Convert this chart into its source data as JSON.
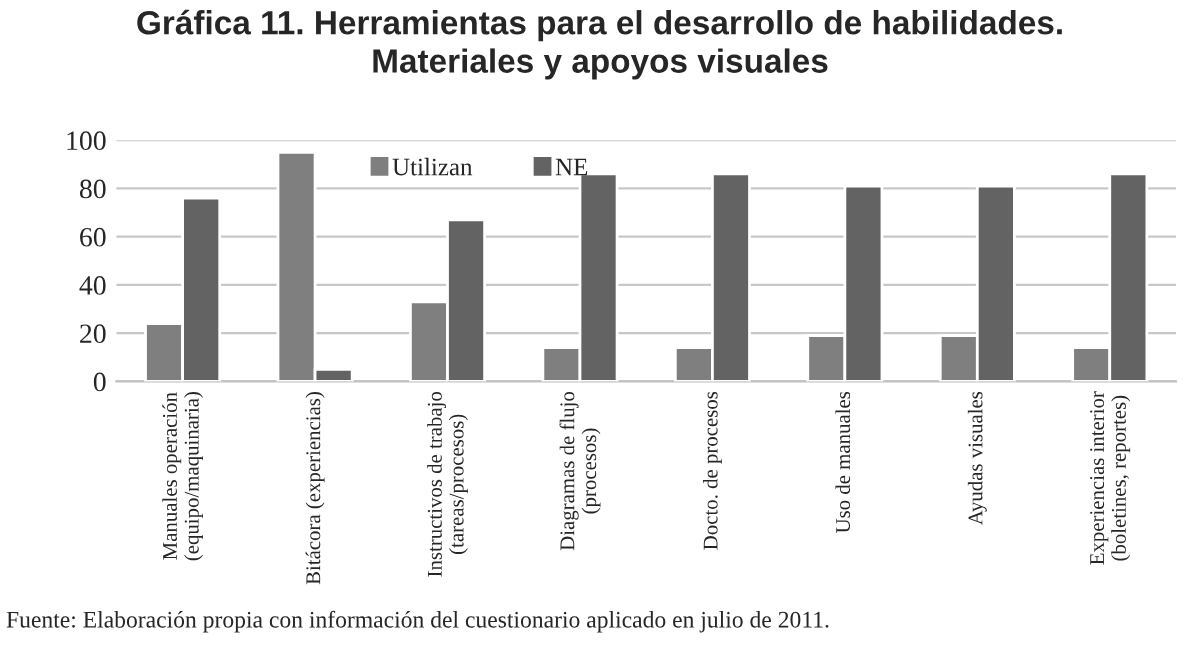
{
  "chart_data": {
    "type": "bar",
    "title": "Gráfica 11. Herramientas para el desarrollo de habilidades.\nMateriales y apoyos visuales",
    "categories": [
      "Manuales operación\n(equipo/maquinaria)",
      "Bitácora (experiencias)",
      "Instructivos de trabajo\n(tareas/procesos)",
      "Diagramas de flujo\n(procesos)",
      "Docto. de procesos",
      "Uso de manuales",
      "Ayudas visuales",
      "Experiencias interior\n(boletines, reportes)"
    ],
    "series": [
      {
        "name": "Utilizan",
        "color": "#7f7f7f",
        "values": [
          24,
          95,
          33,
          14,
          14,
          19,
          19,
          14
        ]
      },
      {
        "name": "NE",
        "color": "#636363",
        "values": [
          76,
          5,
          67,
          86,
          86,
          81,
          81,
          86
        ]
      }
    ],
    "ylim": [
      0,
      100
    ],
    "yticks": [
      0,
      20,
      40,
      60,
      80,
      100
    ],
    "grid": "y",
    "legend": "top",
    "annotations": [
      "Fuente: Elaboración propia con información del cuestionario aplicado en julio de 2011."
    ]
  }
}
